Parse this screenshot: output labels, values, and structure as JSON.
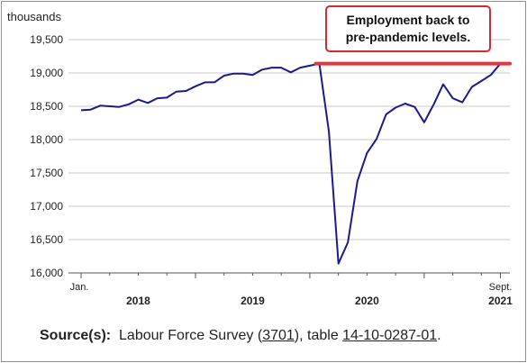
{
  "chart_data": {
    "type": "line",
    "ylabel": "thousands",
    "ylim": [
      16000,
      19500
    ],
    "yticks": [
      16000,
      16500,
      17000,
      17500,
      18000,
      18500,
      19000,
      19500
    ],
    "ytick_labels": [
      "16,000",
      "16,500",
      "17,000",
      "17,500",
      "18,000",
      "18,500",
      "19,000",
      "19,500"
    ],
    "x_axis": {
      "start_label": "Jan.",
      "end_label": "Sept.",
      "year_labels": [
        {
          "year": "2018",
          "month_index": 6
        },
        {
          "year": "2019",
          "month_index": 18
        },
        {
          "year": "2020",
          "month_index": 30
        },
        {
          "year": "2021",
          "month_index": 44
        }
      ]
    },
    "series": [
      {
        "color": "#1a1a8c",
        "x_start": "2018-01",
        "values": [
          18440,
          18450,
          18510,
          18500,
          18490,
          18530,
          18600,
          18550,
          18620,
          18630,
          18720,
          18730,
          18800,
          18860,
          18860,
          18960,
          18990,
          18990,
          18970,
          19050,
          19080,
          19080,
          19010,
          19080,
          19110,
          19140,
          18120,
          16140,
          16460,
          17380,
          17800,
          18010,
          18380,
          18480,
          18540,
          18490,
          18260,
          18530,
          18830,
          18620,
          18560,
          18790,
          18880,
          18970,
          19140
        ]
      }
    ],
    "reference_line": {
      "value": 19140,
      "color": "#e8333a"
    },
    "annotation": {
      "text_line1": "Employment back to",
      "text_line2": "pre-pandemic levels."
    }
  },
  "source": {
    "label": "Source(s):",
    "text_before": "Labour Force Survey (",
    "survey_link": "3701",
    "text_middle": "), table ",
    "table_link": "14-10-0287-01",
    "text_after": "."
  }
}
